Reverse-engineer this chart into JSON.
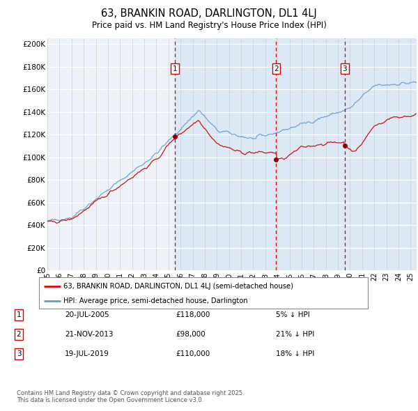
{
  "title": "63, BRANKIN ROAD, DARLINGTON, DL1 4LJ",
  "subtitle": "Price paid vs. HM Land Registry's House Price Index (HPI)",
  "plot_bg_color_left": "#f0f4f8",
  "plot_bg_color_right": "#dce9f5",
  "yticks": [
    0,
    20000,
    40000,
    60000,
    80000,
    100000,
    120000,
    140000,
    160000,
    180000,
    200000
  ],
  "ytick_labels": [
    "£0",
    "£20K",
    "£40K",
    "£60K",
    "£80K",
    "£100K",
    "£120K",
    "£140K",
    "£160K",
    "£180K",
    "£200K"
  ],
  "xstart": 1995,
  "xend": 2025.5,
  "sale_dates_num": [
    2005.55,
    2013.9,
    2019.55
  ],
  "sale_prices": [
    118000,
    98000,
    110000
  ],
  "sale_labels": [
    "1",
    "2",
    "3"
  ],
  "dashed_color": "#cc0000",
  "marker_color": "#8b0000",
  "legend_line1": "63, BRANKIN ROAD, DARLINGTON, DL1 4LJ (semi-detached house)",
  "legend_line2": "HPI: Average price, semi-detached house, Darlington",
  "table_rows": [
    [
      "1",
      "20-JUL-2005",
      "£118,000",
      "5% ↓ HPI"
    ],
    [
      "2",
      "21-NOV-2013",
      "£98,000",
      "21% ↓ HPI"
    ],
    [
      "3",
      "19-JUL-2019",
      "£110,000",
      "18% ↓ HPI"
    ]
  ],
  "footer": "Contains HM Land Registry data © Crown copyright and database right 2025.\nThis data is licensed under the Open Government Licence v3.0.",
  "hpi_line_color": "#6699cc",
  "price_line_color": "#cc1111"
}
